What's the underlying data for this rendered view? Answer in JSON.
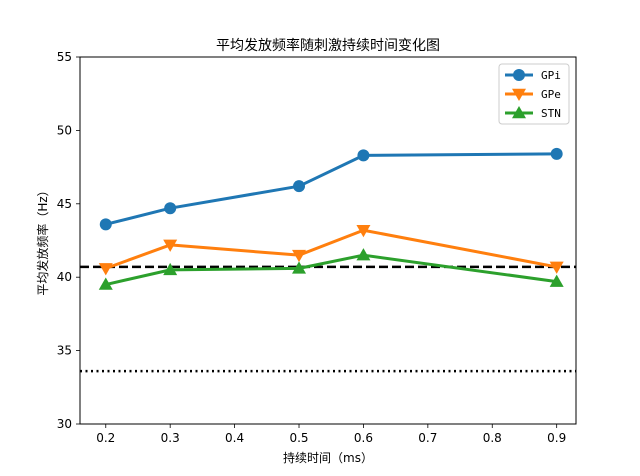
{
  "chart_data": {
    "type": "line",
    "title": "平均发放频率随刺激持续时间变化图",
    "xlabel": "持续时间（ms）",
    "ylabel": "平均发放频率（Hz）",
    "x": [
      0.2,
      0.3,
      0.5,
      0.6,
      0.9
    ],
    "xlim": [
      0.16,
      0.93
    ],
    "ylim": [
      30,
      55
    ],
    "xticks": [
      "0.2",
      "0.3",
      "0.4",
      "0.5",
      "0.6",
      "0.7",
      "0.8",
      "0.9"
    ],
    "yticks": [
      "30",
      "35",
      "40",
      "45",
      "50",
      "55"
    ],
    "grid": false,
    "legend_position": "top-right",
    "series": [
      {
        "name": "GPi",
        "values": [
          43.6,
          44.7,
          46.2,
          48.3,
          48.4
        ],
        "color": "#1f77b4",
        "marker": "circle"
      },
      {
        "name": "GPe",
        "values": [
          40.6,
          42.2,
          41.5,
          43.2,
          40.7
        ],
        "color": "#ff7f0e",
        "marker": "triangle-down"
      },
      {
        "name": "STN",
        "values": [
          39.5,
          40.5,
          40.6,
          41.5,
          39.7
        ],
        "color": "#2ca02c",
        "marker": "triangle-up"
      }
    ],
    "reference_lines": [
      {
        "y": 40.7,
        "style": "dashed",
        "color": "#000000"
      },
      {
        "y": 33.6,
        "style": "dotted",
        "color": "#000000"
      }
    ]
  }
}
